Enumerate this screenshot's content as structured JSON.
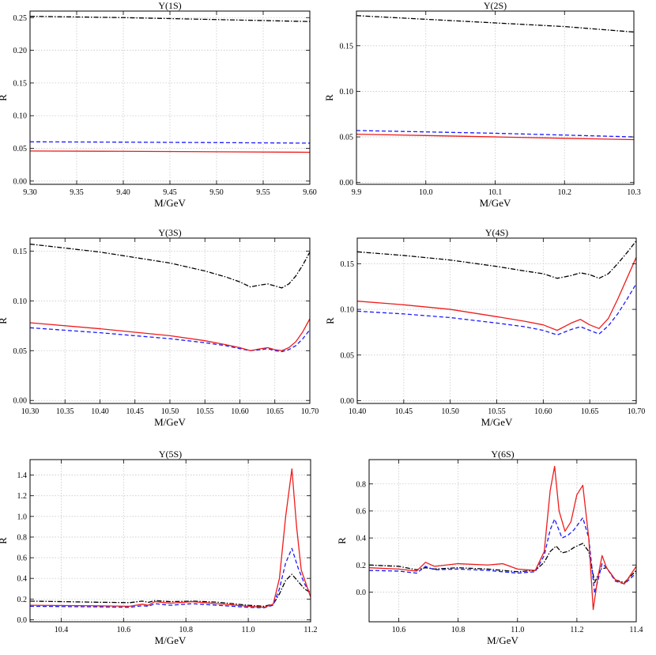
{
  "chart_data": [
    {
      "type": "line",
      "title": "Υ(1S)",
      "xlabel": "M/GeV",
      "ylabel": "R",
      "xlim": [
        9.3,
        9.6
      ],
      "ylim": [
        -0.005,
        0.26
      ],
      "xticks": [
        "9.30",
        "9.35",
        "9.40",
        "9.45",
        "9.50",
        "9.55",
        "9.60"
      ],
      "xtick_values": [
        9.3,
        9.35,
        9.4,
        9.45,
        9.5,
        9.55,
        9.6
      ],
      "yticks": [
        "0.00",
        "0.05",
        "0.10",
        "0.15",
        "0.20",
        "0.25"
      ],
      "ytick_values": [
        0.0,
        0.05,
        0.1,
        0.15,
        0.2,
        0.25
      ],
      "grid": true,
      "series": [
        {
          "name": "black dash-dot",
          "color": "#000000",
          "dash": "dashdot",
          "x": [
            9.3,
            9.4,
            9.5,
            9.6
          ],
          "y": [
            0.252,
            0.25,
            0.247,
            0.244
          ]
        },
        {
          "name": "blue dashed",
          "color": "#1a1aff",
          "dash": "dashed",
          "x": [
            9.3,
            9.4,
            9.5,
            9.6
          ],
          "y": [
            0.06,
            0.0595,
            0.0588,
            0.058
          ]
        },
        {
          "name": "red solid",
          "color": "#ee1c1c",
          "dash": "solid",
          "x": [
            9.3,
            9.4,
            9.5,
            9.6
          ],
          "y": [
            0.046,
            0.0455,
            0.0448,
            0.044
          ]
        }
      ]
    },
    {
      "type": "line",
      "title": "Υ(2S)",
      "xlabel": "M/GeV",
      "ylabel": "R",
      "xlim": [
        9.9,
        10.3
      ],
      "ylim": [
        -0.002,
        0.188
      ],
      "xticks": [
        "9.9",
        "10.0",
        "10.1",
        "10.2",
        "10.3"
      ],
      "xtick_values": [
        9.9,
        10.0,
        10.1,
        10.2,
        10.3
      ],
      "yticks": [
        "0.00",
        "0.05",
        "0.10",
        "0.15"
      ],
      "ytick_values": [
        0.0,
        0.05,
        0.1,
        0.15
      ],
      "grid": true,
      "series": [
        {
          "name": "black dash-dot",
          "color": "#000000",
          "dash": "dashdot",
          "x": [
            9.9,
            10.0,
            10.1,
            10.2,
            10.3
          ],
          "y": [
            0.183,
            0.179,
            0.175,
            0.171,
            0.165
          ]
        },
        {
          "name": "blue dashed",
          "color": "#1a1aff",
          "dash": "dashed",
          "x": [
            9.9,
            10.0,
            10.1,
            10.2,
            10.3
          ],
          "y": [
            0.057,
            0.0555,
            0.054,
            0.052,
            0.05
          ]
        },
        {
          "name": "red solid",
          "color": "#ee1c1c",
          "dash": "solid",
          "x": [
            9.9,
            10.0,
            10.1,
            10.2,
            10.3
          ],
          "y": [
            0.053,
            0.0515,
            0.05,
            0.0485,
            0.047
          ]
        }
      ]
    },
    {
      "type": "line",
      "title": "Υ(3S)",
      "xlabel": "M/GeV",
      "ylabel": "R",
      "xlim": [
        10.3,
        10.7
      ],
      "ylim": [
        -0.003,
        0.163
      ],
      "xticks": [
        "10.30",
        "10.35",
        "10.40",
        "10.45",
        "10.50",
        "10.55",
        "10.60",
        "10.65",
        "10.70"
      ],
      "xtick_values": [
        10.3,
        10.35,
        10.4,
        10.45,
        10.5,
        10.55,
        10.6,
        10.65,
        10.7
      ],
      "yticks": [
        "0.00",
        "0.05",
        "0.10",
        "0.15"
      ],
      "ytick_values": [
        0.0,
        0.05,
        0.1,
        0.15
      ],
      "grid": true,
      "series": [
        {
          "name": "black dash-dot",
          "color": "#000000",
          "dash": "dashdot",
          "x": [
            10.3,
            10.4,
            10.5,
            10.55,
            10.58,
            10.6,
            10.615,
            10.63,
            10.64,
            10.65,
            10.66,
            10.67,
            10.68,
            10.69,
            10.7
          ],
          "y": [
            0.157,
            0.149,
            0.138,
            0.13,
            0.124,
            0.119,
            0.114,
            0.116,
            0.117,
            0.115,
            0.113,
            0.117,
            0.125,
            0.136,
            0.149
          ]
        },
        {
          "name": "blue dashed",
          "color": "#1a1aff",
          "dash": "dashed",
          "x": [
            10.3,
            10.4,
            10.5,
            10.55,
            10.58,
            10.6,
            10.615,
            10.63,
            10.64,
            10.65,
            10.66,
            10.67,
            10.68,
            10.69,
            10.7
          ],
          "y": [
            0.073,
            0.068,
            0.062,
            0.058,
            0.055,
            0.052,
            0.05,
            0.051,
            0.052,
            0.05,
            0.049,
            0.051,
            0.055,
            0.062,
            0.071
          ]
        },
        {
          "name": "red solid",
          "color": "#ee1c1c",
          "dash": "solid",
          "x": [
            10.3,
            10.4,
            10.5,
            10.55,
            10.58,
            10.6,
            10.615,
            10.63,
            10.64,
            10.65,
            10.66,
            10.67,
            10.68,
            10.69,
            10.7
          ],
          "y": [
            0.078,
            0.072,
            0.065,
            0.06,
            0.056,
            0.053,
            0.05,
            0.052,
            0.053,
            0.051,
            0.05,
            0.053,
            0.059,
            0.069,
            0.082
          ]
        }
      ]
    },
    {
      "type": "line",
      "title": "Υ(4S)",
      "xlabel": "M/GeV",
      "ylabel": "R",
      "xlim": [
        10.4,
        10.7
      ],
      "ylim": [
        -0.003,
        0.178
      ],
      "xticks": [
        "10.40",
        "10.45",
        "10.50",
        "10.55",
        "10.60",
        "10.65",
        "10.70"
      ],
      "xtick_values": [
        10.4,
        10.45,
        10.5,
        10.55,
        10.6,
        10.65,
        10.7
      ],
      "yticks": [
        "0.00",
        "0.05",
        "0.10",
        "0.15"
      ],
      "ytick_values": [
        0.0,
        0.05,
        0.1,
        0.15
      ],
      "grid": true,
      "series": [
        {
          "name": "black dash-dot",
          "color": "#000000",
          "dash": "dashdot",
          "x": [
            10.4,
            10.45,
            10.5,
            10.55,
            10.58,
            10.6,
            10.615,
            10.63,
            10.64,
            10.65,
            10.66,
            10.67,
            10.68,
            10.69,
            10.7
          ],
          "y": [
            0.163,
            0.159,
            0.154,
            0.147,
            0.142,
            0.139,
            0.134,
            0.137,
            0.14,
            0.138,
            0.134,
            0.139,
            0.15,
            0.162,
            0.175
          ]
        },
        {
          "name": "blue dashed",
          "color": "#1a1aff",
          "dash": "dashed",
          "x": [
            10.4,
            10.45,
            10.5,
            10.55,
            10.58,
            10.6,
            10.615,
            10.63,
            10.64,
            10.65,
            10.66,
            10.67,
            10.68,
            10.69,
            10.7
          ],
          "y": [
            0.098,
            0.095,
            0.091,
            0.085,
            0.081,
            0.077,
            0.072,
            0.078,
            0.081,
            0.077,
            0.073,
            0.082,
            0.095,
            0.111,
            0.128
          ]
        },
        {
          "name": "red solid",
          "color": "#ee1c1c",
          "dash": "solid",
          "x": [
            10.4,
            10.45,
            10.5,
            10.55,
            10.58,
            10.6,
            10.615,
            10.63,
            10.64,
            10.65,
            10.66,
            10.67,
            10.68,
            10.69,
            10.7
          ],
          "y": [
            0.109,
            0.105,
            0.1,
            0.092,
            0.087,
            0.083,
            0.077,
            0.085,
            0.089,
            0.083,
            0.079,
            0.09,
            0.111,
            0.134,
            0.157
          ]
        }
      ]
    },
    {
      "type": "line",
      "title": "Υ(5S)",
      "xlabel": "M/GeV",
      "ylabel": "R",
      "xlim": [
        10.3,
        11.2
      ],
      "ylim": [
        -0.02,
        1.55
      ],
      "xticks": [
        "10.4",
        "10.6",
        "10.8",
        "11.0",
        "11.2"
      ],
      "xtick_values": [
        10.4,
        10.6,
        10.8,
        11.0,
        11.2
      ],
      "yticks": [
        "0.0",
        "0.2",
        "0.4",
        "0.6",
        "0.8",
        "1.0",
        "1.2",
        "1.4"
      ],
      "ytick_values": [
        0.0,
        0.2,
        0.4,
        0.6,
        0.8,
        1.0,
        1.2,
        1.4
      ],
      "grid": true,
      "series": [
        {
          "name": "black dash-dot",
          "color": "#000000",
          "dash": "dashdot",
          "x": [
            10.3,
            10.5,
            10.62,
            10.66,
            10.68,
            10.7,
            10.75,
            10.82,
            10.9,
            11.0,
            11.05,
            11.08,
            11.1,
            11.12,
            11.14,
            11.16,
            11.18,
            11.2
          ],
          "y": [
            0.18,
            0.17,
            0.165,
            0.18,
            0.168,
            0.185,
            0.175,
            0.18,
            0.17,
            0.14,
            0.13,
            0.15,
            0.25,
            0.38,
            0.44,
            0.37,
            0.3,
            0.26
          ]
        },
        {
          "name": "blue dashed",
          "color": "#1a1aff",
          "dash": "dashed",
          "x": [
            10.3,
            10.5,
            10.62,
            10.66,
            10.68,
            10.7,
            10.75,
            10.82,
            10.9,
            11.0,
            11.05,
            11.08,
            11.1,
            11.12,
            11.14,
            11.16,
            11.18,
            11.2
          ],
          "y": [
            0.13,
            0.125,
            0.12,
            0.135,
            0.13,
            0.155,
            0.14,
            0.155,
            0.14,
            0.12,
            0.115,
            0.14,
            0.3,
            0.55,
            0.69,
            0.5,
            0.35,
            0.25
          ]
        },
        {
          "name": "red solid",
          "color": "#ee1c1c",
          "dash": "solid",
          "x": [
            10.3,
            10.5,
            10.62,
            10.66,
            10.68,
            10.7,
            10.75,
            10.82,
            10.9,
            11.0,
            11.05,
            11.08,
            11.1,
            11.12,
            11.14,
            11.155,
            11.17,
            11.2
          ],
          "y": [
            0.14,
            0.135,
            0.13,
            0.15,
            0.14,
            0.175,
            0.16,
            0.175,
            0.155,
            0.13,
            0.12,
            0.15,
            0.4,
            1.0,
            1.46,
            0.9,
            0.48,
            0.22
          ]
        }
      ]
    },
    {
      "type": "line",
      "title": "Υ(6S)",
      "xlabel": "M/GeV",
      "ylabel": "R",
      "xlim": [
        10.5,
        11.4
      ],
      "ylim": [
        -0.22,
        0.98
      ],
      "xticks": [
        "10.6",
        "10.8",
        "11.0",
        "11.2",
        "11.4"
      ],
      "xtick_values": [
        10.6,
        10.8,
        11.0,
        11.2,
        11.4
      ],
      "yticks": [
        "0.0",
        "0.2",
        "0.4",
        "0.6",
        "0.8"
      ],
      "ytick_values": [
        0.0,
        0.2,
        0.4,
        0.6,
        0.8
      ],
      "grid": true,
      "series": [
        {
          "name": "black dash-dot",
          "color": "#000000",
          "dash": "dashdot",
          "x": [
            10.5,
            10.6,
            10.66,
            10.69,
            10.72,
            10.8,
            10.9,
            11.0,
            11.06,
            11.09,
            11.11,
            11.13,
            11.15,
            11.17,
            11.19,
            11.22,
            11.24,
            11.26,
            11.28,
            11.3,
            11.33,
            11.36,
            11.4
          ],
          "y": [
            0.2,
            0.19,
            0.165,
            0.18,
            0.17,
            0.18,
            0.17,
            0.15,
            0.16,
            0.22,
            0.3,
            0.34,
            0.29,
            0.3,
            0.33,
            0.36,
            0.3,
            0.07,
            0.17,
            0.18,
            0.09,
            0.07,
            0.16
          ]
        },
        {
          "name": "blue dashed",
          "color": "#1a1aff",
          "dash": "dashed",
          "x": [
            10.5,
            10.6,
            10.66,
            10.69,
            10.72,
            10.8,
            10.9,
            11.0,
            11.06,
            11.09,
            11.11,
            11.125,
            11.15,
            11.17,
            11.19,
            11.22,
            11.24,
            11.26,
            11.285,
            11.3,
            11.33,
            11.36,
            11.4
          ],
          "y": [
            0.16,
            0.155,
            0.14,
            0.19,
            0.165,
            0.17,
            0.16,
            0.14,
            0.15,
            0.27,
            0.46,
            0.54,
            0.4,
            0.42,
            0.46,
            0.55,
            0.4,
            -0.01,
            0.21,
            0.18,
            0.08,
            0.06,
            0.14
          ]
        },
        {
          "name": "red solid",
          "color": "#ee1c1c",
          "dash": "solid",
          "x": [
            10.5,
            10.6,
            10.66,
            10.69,
            10.72,
            10.8,
            10.9,
            10.95,
            11.0,
            11.06,
            11.09,
            11.11,
            11.125,
            11.14,
            11.16,
            11.18,
            11.2,
            11.22,
            11.24,
            11.255,
            11.27,
            11.285,
            11.3,
            11.33,
            11.36,
            11.4
          ],
          "y": [
            0.18,
            0.17,
            0.155,
            0.22,
            0.19,
            0.21,
            0.2,
            0.21,
            0.17,
            0.16,
            0.3,
            0.75,
            0.93,
            0.6,
            0.45,
            0.52,
            0.72,
            0.79,
            0.4,
            -0.13,
            0.1,
            0.27,
            0.18,
            0.09,
            0.06,
            0.19
          ]
        }
      ]
    }
  ]
}
